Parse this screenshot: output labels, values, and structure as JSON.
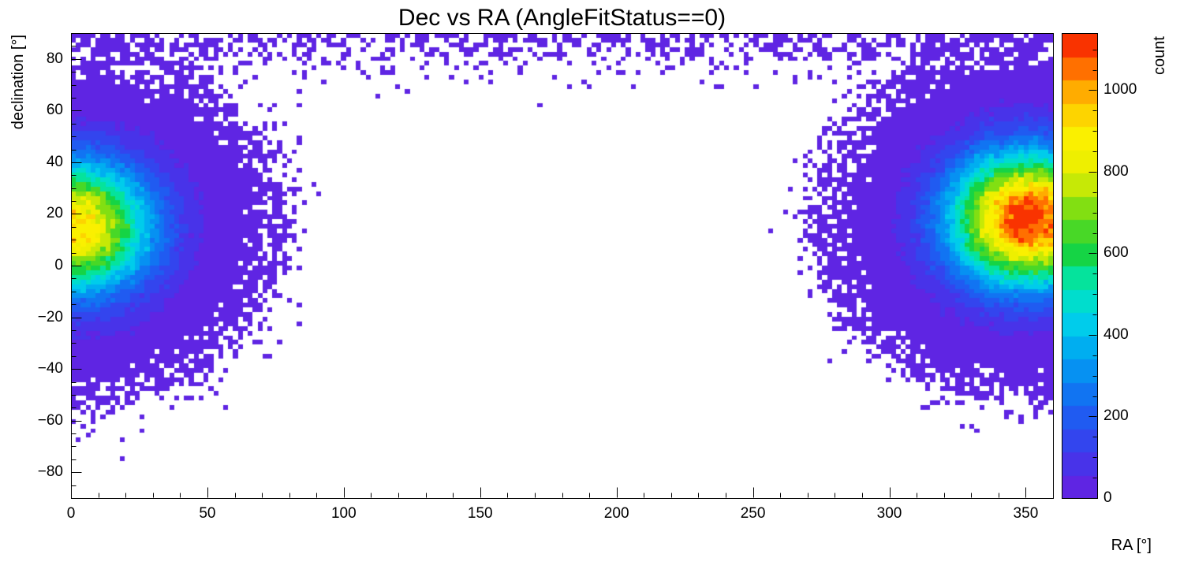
{
  "figure": {
    "background": "#ffffff",
    "frame_color": "#000000"
  },
  "chart_data": {
    "type": "heatmap",
    "title": "Dec vs RA (AngleFitStatus==0)",
    "xlabel": "RA [°]",
    "ylabel": "declination [°]",
    "zlabel": "count",
    "xlim": [
      0,
      360
    ],
    "ylim": [
      -90,
      90
    ],
    "zlim": [
      0,
      1140
    ],
    "x_ticks": [
      0,
      50,
      100,
      150,
      200,
      250,
      300,
      350
    ],
    "x_tick_labels": [
      "0",
      "50",
      "100",
      "150",
      "200",
      "250",
      "300",
      "350"
    ],
    "x_minor_step": 10,
    "y_ticks": [
      -80,
      -60,
      -40,
      -20,
      0,
      20,
      40,
      60,
      80
    ],
    "y_tick_labels": [
      "−80",
      "−60",
      "−40",
      "−20",
      "0",
      "20",
      "40",
      "60",
      "80"
    ],
    "y_minor_step": 5,
    "z_ticks": [
      0,
      200,
      400,
      600,
      800,
      1000
    ],
    "z_tick_labels": [
      "0",
      "200",
      "400",
      "600",
      "800",
      "1000"
    ],
    "z_minor_step": 50,
    "contours": 20,
    "bins": {
      "nx": 200,
      "ny": 100
    },
    "grid": false,
    "legend": "colorbar-right",
    "palette": [
      {
        "t": 0.0,
        "color": "#6A1EE0"
      },
      {
        "t": 0.1,
        "color": "#3C3AEC"
      },
      {
        "t": 0.2,
        "color": "#1766F2"
      },
      {
        "t": 0.3,
        "color": "#009FF2"
      },
      {
        "t": 0.38,
        "color": "#00CFEA"
      },
      {
        "t": 0.46,
        "color": "#00E8B6"
      },
      {
        "t": 0.53,
        "color": "#17D23C"
      },
      {
        "t": 0.61,
        "color": "#6EDC16"
      },
      {
        "t": 0.7,
        "color": "#E8EE00"
      },
      {
        "t": 0.78,
        "color": "#FBF000"
      },
      {
        "t": 0.86,
        "color": "#FFBE00"
      },
      {
        "t": 0.93,
        "color": "#FF6A00"
      },
      {
        "t": 1.0,
        "color": "#F51400"
      }
    ],
    "model": {
      "description": "Two Gaussian hotspots at Dec ≈ +15..18 near RA 0 and RA 360 (peak ≈ 1100 counts at RA ≈ 351, secondary ≈ 940 at RA ≈ 1), sparse scatter toward the Dec = +90 cap across all RA, empty band in the map centre (RA ≈ 95–255).",
      "blobs": [
        {
          "ra": 351,
          "dec": 18,
          "sigma_ra": 20,
          "sigma_dec": 18,
          "amplitude": 1150
        },
        {
          "ra": 1,
          "dec": 15,
          "sigma_ra": 20,
          "sigma_dec": 18,
          "amplitude": 940
        }
      ],
      "polar_cap": {
        "amplitude": 0.55,
        "sigma": 9
      },
      "noise_scale": 1.3,
      "seed": 20240613
    }
  }
}
